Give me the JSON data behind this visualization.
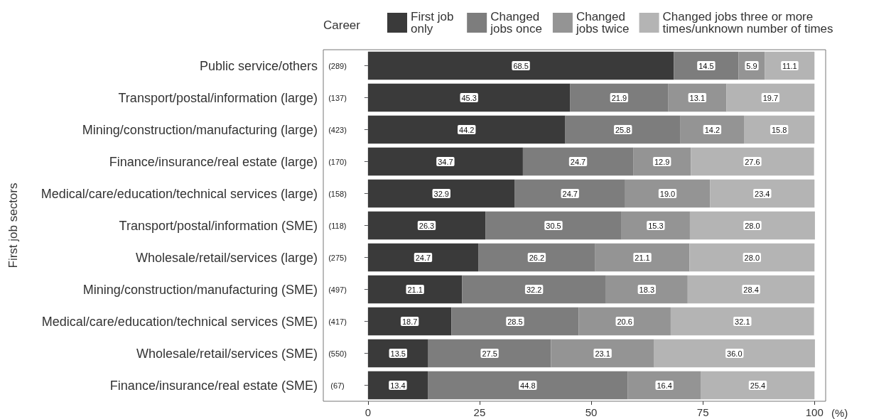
{
  "chart_data": {
    "type": "bar",
    "orientation": "horizontal",
    "stacked": true,
    "grid": false,
    "legend": "top",
    "legend_title": "Career",
    "ylabel": "First job sectors",
    "xlabel": "(%)",
    "xlim": [
      -10,
      102.5
    ],
    "xticks": [
      0,
      25,
      50,
      75,
      100
    ],
    "categories": [
      "Public service/others",
      "Transport/postal/information (large)",
      "Mining/construction/manufacturing (large)",
      "Finance/insurance/real estate (large)",
      "Medical/care/education/technical services (large)",
      "Transport/postal/information (SME)",
      "Wholesale/retail/services (large)",
      "Mining/construction/manufacturing (SME)",
      "Medical/care/education/technical services (SME)",
      "Wholesale/retail/services (SME)",
      "Finance/insurance/real estate (SME)"
    ],
    "series": [
      {
        "name": "First job only",
        "color": "#3a3a3a",
        "values": [
          68.5,
          45.3,
          44.2,
          34.7,
          32.9,
          26.3,
          24.7,
          21.1,
          18.7,
          13.5,
          13.4
        ],
        "value_labels": [
          "68.5",
          "45.3",
          "44.2",
          "34.7",
          "32.9",
          "26.3",
          "24.7",
          "21.1",
          "18.7",
          "13.5",
          "13.4"
        ]
      },
      {
        "name": "Changed jobs once",
        "color": "#7d7d7d",
        "values": [
          14.5,
          21.9,
          25.8,
          24.7,
          24.7,
          30.5,
          26.2,
          32.2,
          28.5,
          27.5,
          44.8
        ],
        "value_labels": [
          "14.5",
          "21.9",
          "25.8",
          "24.7",
          "24.7",
          "30.5",
          "26.2",
          "32.2",
          "28.5",
          "27.5",
          "44.8"
        ]
      },
      {
        "name": "Changed jobs twice",
        "color": "#949494",
        "values": [
          5.9,
          13.1,
          14.2,
          12.9,
          19.0,
          15.3,
          21.1,
          18.3,
          20.6,
          23.1,
          16.4
        ],
        "value_labels": [
          "5.9",
          "13.1",
          "14.2",
          "12.9",
          "19.0",
          "15.3",
          "21.1",
          "18.3",
          "20.6",
          "23.1",
          "16.4"
        ]
      },
      {
        "name": "Changed jobs three or more times/unknown number of times",
        "color": "#b4b4b4",
        "values": [
          11.1,
          19.7,
          15.8,
          27.6,
          23.4,
          28.0,
          28.0,
          28.4,
          32.1,
          36.0,
          25.4
        ],
        "value_labels": [
          "11.1",
          "19.7",
          "15.8",
          "27.6",
          "23.4",
          "28.0",
          "28.0",
          "28.4",
          "32.1",
          "36.0",
          "25.4"
        ]
      }
    ],
    "annotations": [
      "(289)",
      "(137)",
      "(423)",
      "(170)",
      "(158)",
      "(118)",
      "(275)",
      "(497)",
      "(417)",
      "(550)",
      "(67)"
    ]
  }
}
